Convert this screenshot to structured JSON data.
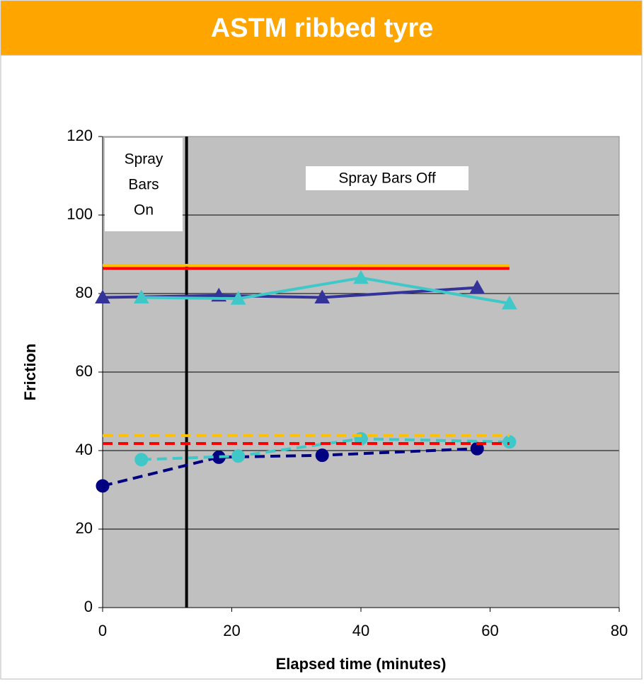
{
  "chart_data": {
    "type": "line",
    "title": "ASTM ribbed tyre",
    "xlabel": "Elapsed time (minutes)",
    "ylabel": "Friction",
    "xlim": [
      0,
      80
    ],
    "xticks": [
      0,
      20,
      40,
      60,
      80
    ],
    "ylim": [
      0,
      120
    ],
    "yticks": [
      0,
      20,
      40,
      60,
      80,
      100,
      120
    ],
    "grid": true,
    "vline": 13,
    "annotations": [
      [
        "Spray",
        "Bars",
        "On"
      ],
      [
        "Spray Bars Off"
      ]
    ],
    "series": [
      {
        "color": "#333399",
        "dash": false,
        "marker": "triangle",
        "x": [
          0,
          18,
          34,
          58
        ],
        "values": [
          79,
          79.5,
          79,
          81.5
        ]
      },
      {
        "color": "#40c8c8",
        "dash": false,
        "marker": "triangle",
        "x": [
          6,
          21,
          40,
          63
        ],
        "values": [
          79,
          78.7,
          84,
          77.5
        ]
      },
      {
        "color": "#ffc000",
        "dash": false,
        "marker": null,
        "x": [
          0,
          63
        ],
        "values": [
          87.2,
          87.2
        ]
      },
      {
        "color": "#ff0000",
        "dash": false,
        "marker": null,
        "x": [
          0,
          63
        ],
        "values": [
          86.4,
          86.4
        ]
      },
      {
        "color": "#000080",
        "dash": true,
        "marker": "circle",
        "x": [
          0,
          18,
          34,
          58
        ],
        "values": [
          31,
          38.3,
          38.8,
          40.5
        ]
      },
      {
        "color": "#40c8c8",
        "dash": true,
        "marker": "circle",
        "x": [
          6,
          21,
          40,
          63
        ],
        "values": [
          37.7,
          38.6,
          43,
          42.2
        ]
      },
      {
        "color": "#ffc000",
        "dash": true,
        "marker": null,
        "x": [
          0,
          63
        ],
        "values": [
          43.8,
          43.8
        ]
      },
      {
        "color": "#ff0000",
        "dash": true,
        "marker": null,
        "x": [
          0,
          63
        ],
        "values": [
          41.8,
          41.8
        ]
      }
    ]
  }
}
